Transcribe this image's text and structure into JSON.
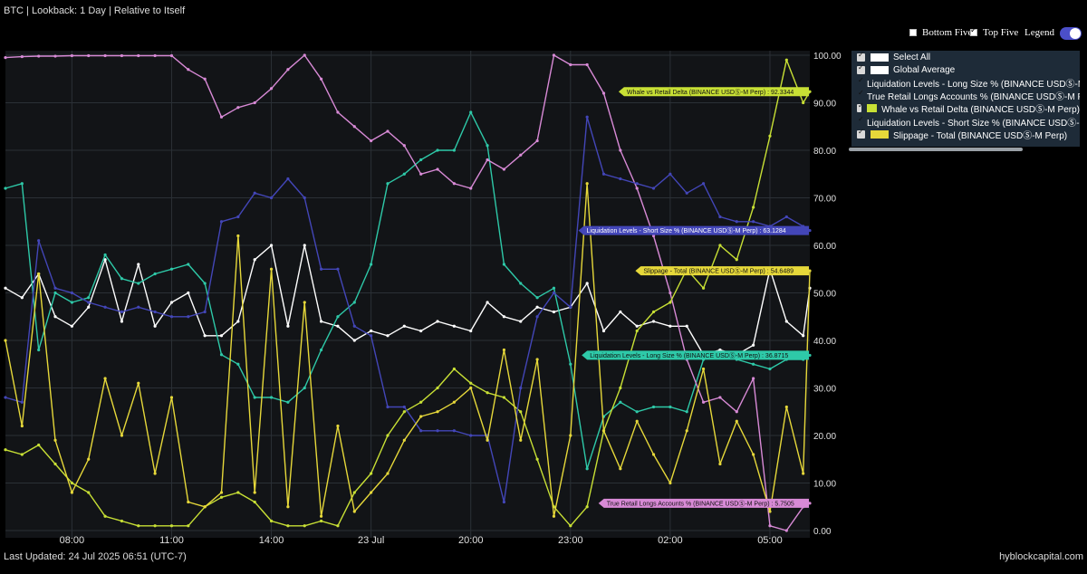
{
  "header": {
    "title": "BTC | Lookback: 1 Day | Relative to Itself"
  },
  "controls": {
    "bottom_five": "Bottom Five",
    "top_five": "Top Five",
    "legend": "Legend"
  },
  "footer": {
    "updated": "Last Updated: 24 Jul 2025 06:51 (UTC-7)",
    "brand": "hyblockcapital.com"
  },
  "legend": {
    "items": [
      {
        "label": "Select All",
        "color": "#ffffff"
      },
      {
        "label": "Global Average",
        "color": "#ffffff"
      },
      {
        "label": "Liquidation Levels - Long Size % (BINANCE USDⓈ-M Perp)",
        "color": "#2ec9a8"
      },
      {
        "label": "True Retail Longs Accounts % (BINANCE USDⓈ-M Perp)",
        "color": "#d88ad6"
      },
      {
        "label": "Whale vs Retail Delta (BINANCE USDⓈ-M Perp)",
        "color": "#c8e035"
      },
      {
        "label": "Liquidation Levels - Short Size % (BINANCE USDⓈ-M Perp)",
        "color": "#4346b8"
      },
      {
        "label": "Slippage - Total (BINANCE USDⓈ-M Perp)",
        "color": "#e6d83a"
      }
    ]
  },
  "chart_data": {
    "type": "line",
    "x_tick_labels": [
      "08:00",
      "11:00",
      "14:00",
      "23 Jul",
      "20:00",
      "23:00",
      "02:00",
      "05:00"
    ],
    "x_tick_hours": [
      2,
      5,
      8,
      11,
      14,
      17,
      20,
      23
    ],
    "x_range_hours": [
      0,
      24.2
    ],
    "y_ticks": [
      "0.00",
      "10.00",
      "20.00",
      "30.00",
      "40.00",
      "50.00",
      "60.00",
      "70.00",
      "80.00",
      "90.00",
      "100.00"
    ],
    "ylim": [
      0,
      100
    ],
    "grid": true,
    "series": [
      {
        "name": "Global Average",
        "color": "#ffffff",
        "points": [
          [
            0,
            51
          ],
          [
            0.5,
            49
          ],
          [
            1,
            54
          ],
          [
            1.5,
            45
          ],
          [
            2,
            43
          ],
          [
            2.5,
            47
          ],
          [
            3,
            57
          ],
          [
            3.5,
            44
          ],
          [
            4,
            56
          ],
          [
            4.5,
            43
          ],
          [
            5,
            48
          ],
          [
            5.5,
            50
          ],
          [
            6,
            41
          ],
          [
            6.5,
            41
          ],
          [
            7,
            44
          ],
          [
            7.5,
            57
          ],
          [
            8,
            60
          ],
          [
            8.5,
            43
          ],
          [
            9,
            60
          ],
          [
            9.5,
            44
          ],
          [
            10,
            43
          ],
          [
            10.5,
            40
          ],
          [
            11,
            42
          ],
          [
            11.5,
            41
          ],
          [
            12,
            43
          ],
          [
            12.5,
            42
          ],
          [
            13,
            44
          ],
          [
            13.5,
            43
          ],
          [
            14,
            42
          ],
          [
            14.5,
            48
          ],
          [
            15,
            45
          ],
          [
            15.5,
            44
          ],
          [
            16,
            47
          ],
          [
            16.5,
            46
          ],
          [
            17,
            47
          ],
          [
            17.5,
            52
          ],
          [
            18,
            42
          ],
          [
            18.5,
            46
          ],
          [
            19,
            43
          ],
          [
            19.5,
            44
          ],
          [
            20,
            43
          ],
          [
            20.5,
            43
          ],
          [
            21,
            37
          ],
          [
            21.5,
            38
          ],
          [
            22,
            37
          ],
          [
            22.5,
            39
          ],
          [
            23,
            55
          ],
          [
            23.5,
            44
          ],
          [
            24,
            41
          ],
          [
            24.2,
            51
          ]
        ],
        "tag": ""
      },
      {
        "name": "Liquidation Levels - Long Size % (BINANCE USDⓈ-M Perp)",
        "color": "#2ec9a8",
        "points": [
          [
            0,
            72
          ],
          [
            0.5,
            73
          ],
          [
            1,
            38
          ],
          [
            1.5,
            50
          ],
          [
            2,
            48
          ],
          [
            2.5,
            49
          ],
          [
            3,
            58
          ],
          [
            3.5,
            53
          ],
          [
            4,
            52
          ],
          [
            4.5,
            54
          ],
          [
            5,
            55
          ],
          [
            5.5,
            56
          ],
          [
            6,
            52
          ],
          [
            6.5,
            37
          ],
          [
            7,
            35
          ],
          [
            7.5,
            28
          ],
          [
            8,
            28
          ],
          [
            8.5,
            27
          ],
          [
            9,
            30
          ],
          [
            9.5,
            38
          ],
          [
            10,
            45
          ],
          [
            10.5,
            48
          ],
          [
            11,
            56
          ],
          [
            11.5,
            73
          ],
          [
            12,
            75
          ],
          [
            12.5,
            78
          ],
          [
            13,
            80
          ],
          [
            13.5,
            80
          ],
          [
            14,
            88
          ],
          [
            14.5,
            81
          ],
          [
            15,
            56
          ],
          [
            15.5,
            52
          ],
          [
            16,
            49
          ],
          [
            16.5,
            51
          ],
          [
            17,
            35
          ],
          [
            17.5,
            13
          ],
          [
            18,
            24
          ],
          [
            18.5,
            27
          ],
          [
            19,
            25
          ],
          [
            19.5,
            26
          ],
          [
            20,
            26
          ],
          [
            20.5,
            25
          ],
          [
            21,
            36
          ],
          [
            21.5,
            37
          ],
          [
            22,
            36
          ],
          [
            22.5,
            35
          ],
          [
            23,
            34
          ],
          [
            23.5,
            36
          ],
          [
            24,
            36
          ],
          [
            24.2,
            36.87
          ]
        ],
        "tag": "Liquidation Levels - Long Size % (BINANCE USDⓈ-M Perp) : 36.8715"
      },
      {
        "name": "True Retail Longs Accounts % (BINANCE USDⓈ-M Perp)",
        "color": "#d88ad6",
        "points": [
          [
            0,
            99.5
          ],
          [
            0.5,
            99.7
          ],
          [
            1,
            99.8
          ],
          [
            1.5,
            99.8
          ],
          [
            2,
            99.9
          ],
          [
            2.5,
            99.9
          ],
          [
            3,
            99.9
          ],
          [
            3.5,
            99.9
          ],
          [
            4,
            99.9
          ],
          [
            4.5,
            99.9
          ],
          [
            5,
            99.9
          ],
          [
            5.5,
            97
          ],
          [
            6,
            95
          ],
          [
            6.5,
            87
          ],
          [
            7,
            89
          ],
          [
            7.5,
            90
          ],
          [
            8,
            93
          ],
          [
            8.5,
            97
          ],
          [
            9,
            100
          ],
          [
            9.5,
            95
          ],
          [
            10,
            88
          ],
          [
            10.5,
            85
          ],
          [
            11,
            82
          ],
          [
            11.5,
            84
          ],
          [
            12,
            81
          ],
          [
            12.5,
            75
          ],
          [
            13,
            76
          ],
          [
            13.5,
            73
          ],
          [
            14,
            72
          ],
          [
            14.5,
            78
          ],
          [
            15,
            76
          ],
          [
            15.5,
            79
          ],
          [
            16,
            82
          ],
          [
            16.5,
            100
          ],
          [
            17,
            98
          ],
          [
            17.5,
            98
          ],
          [
            18,
            92
          ],
          [
            18.5,
            80
          ],
          [
            19,
            72
          ],
          [
            19.5,
            62
          ],
          [
            20,
            50
          ],
          [
            20.5,
            36
          ],
          [
            21,
            27
          ],
          [
            21.5,
            28
          ],
          [
            22,
            25
          ],
          [
            22.5,
            32
          ],
          [
            23,
            1
          ],
          [
            23.5,
            0
          ],
          [
            24,
            5
          ],
          [
            24.2,
            5.75
          ]
        ],
        "tag": "True Retail Longs Accounts % (BINANCE USDⓈ-M Perp) : 5.7505"
      },
      {
        "name": "Whale vs Retail Delta (BINANCE USDⓈ-M Perp)",
        "color": "#c8e035",
        "points": [
          [
            0,
            17
          ],
          [
            0.5,
            16
          ],
          [
            1,
            18
          ],
          [
            1.5,
            14
          ],
          [
            2,
            10
          ],
          [
            2.5,
            8
          ],
          [
            3,
            3
          ],
          [
            3.5,
            2
          ],
          [
            4,
            1
          ],
          [
            4.5,
            1
          ],
          [
            5,
            1
          ],
          [
            5.5,
            1
          ],
          [
            6,
            5
          ],
          [
            6.5,
            7
          ],
          [
            7,
            8
          ],
          [
            7.5,
            6
          ],
          [
            8,
            2
          ],
          [
            8.5,
            1
          ],
          [
            9,
            1
          ],
          [
            9.5,
            2
          ],
          [
            10,
            1
          ],
          [
            10.5,
            8
          ],
          [
            11,
            12
          ],
          [
            11.5,
            20
          ],
          [
            12,
            25
          ],
          [
            12.5,
            27
          ],
          [
            13,
            30
          ],
          [
            13.5,
            34
          ],
          [
            14,
            31
          ],
          [
            14.5,
            29
          ],
          [
            15,
            28
          ],
          [
            15.5,
            25
          ],
          [
            16,
            15
          ],
          [
            16.5,
            5
          ],
          [
            17,
            1
          ],
          [
            17.5,
            5
          ],
          [
            18,
            21
          ],
          [
            18.5,
            30
          ],
          [
            19,
            42
          ],
          [
            19.5,
            46
          ],
          [
            20,
            48
          ],
          [
            20.5,
            55
          ],
          [
            21,
            51
          ],
          [
            21.5,
            60
          ],
          [
            22,
            57
          ],
          [
            22.5,
            68
          ],
          [
            23,
            83
          ],
          [
            23.5,
            99
          ],
          [
            24,
            90
          ],
          [
            24.2,
            92.33
          ]
        ],
        "tag": "Whale vs Retail Delta (BINANCE USDⓈ-M Perp) : 92.3344"
      },
      {
        "name": "Liquidation Levels - Short Size % (BINANCE USDⓈ-M Perp)",
        "color": "#4346b8",
        "points": [
          [
            0,
            28
          ],
          [
            0.5,
            27
          ],
          [
            1,
            61
          ],
          [
            1.5,
            51
          ],
          [
            2,
            50
          ],
          [
            2.5,
            48
          ],
          [
            3,
            47
          ],
          [
            3.5,
            46
          ],
          [
            4,
            47
          ],
          [
            4.5,
            46
          ],
          [
            5,
            45
          ],
          [
            5.5,
            45
          ],
          [
            6,
            46
          ],
          [
            6.5,
            65
          ],
          [
            7,
            66
          ],
          [
            7.5,
            71
          ],
          [
            8,
            70
          ],
          [
            8.5,
            74
          ],
          [
            9,
            70
          ],
          [
            9.5,
            55
          ],
          [
            10,
            55
          ],
          [
            10.5,
            43
          ],
          [
            11,
            41
          ],
          [
            11.5,
            26
          ],
          [
            12,
            26
          ],
          [
            12.5,
            21
          ],
          [
            13,
            21
          ],
          [
            13.5,
            21
          ],
          [
            14,
            20
          ],
          [
            14.5,
            20
          ],
          [
            15,
            6
          ],
          [
            15.5,
            30
          ],
          [
            16,
            45
          ],
          [
            16.5,
            50
          ],
          [
            17,
            47
          ],
          [
            17.5,
            87
          ],
          [
            18,
            75
          ],
          [
            18.5,
            74
          ],
          [
            19,
            73
          ],
          [
            19.5,
            72
          ],
          [
            20,
            75
          ],
          [
            20.5,
            71
          ],
          [
            21,
            73
          ],
          [
            21.5,
            66
          ],
          [
            22,
            65
          ],
          [
            22.5,
            65
          ],
          [
            23,
            64
          ],
          [
            23.5,
            66
          ],
          [
            24,
            64
          ],
          [
            24.2,
            63.13
          ]
        ],
        "tag": "Liquidation Levels - Short Size % (BINANCE USDⓈ-M Perp) : 63.1284"
      },
      {
        "name": "Slippage - Total (BINANCE USDⓈ-M Perp)",
        "color": "#e6d83a",
        "points": [
          [
            0,
            40
          ],
          [
            0.5,
            22
          ],
          [
            1,
            54
          ],
          [
            1.5,
            19
          ],
          [
            2,
            8
          ],
          [
            2.5,
            15
          ],
          [
            3,
            32
          ],
          [
            3.5,
            20
          ],
          [
            4,
            31
          ],
          [
            4.5,
            12
          ],
          [
            5,
            28
          ],
          [
            5.5,
            6
          ],
          [
            6,
            5
          ],
          [
            6.5,
            8
          ],
          [
            7,
            62
          ],
          [
            7.5,
            8
          ],
          [
            8,
            55
          ],
          [
            8.5,
            5
          ],
          [
            9,
            48
          ],
          [
            9.5,
            3
          ],
          [
            10,
            22
          ],
          [
            10.5,
            4
          ],
          [
            11,
            8
          ],
          [
            11.5,
            12
          ],
          [
            12,
            19
          ],
          [
            12.5,
            24
          ],
          [
            13,
            25
          ],
          [
            13.5,
            27
          ],
          [
            14,
            30
          ],
          [
            14.5,
            19
          ],
          [
            15,
            38
          ],
          [
            15.5,
            19
          ],
          [
            16,
            36
          ],
          [
            16.5,
            3
          ],
          [
            17,
            20
          ],
          [
            17.5,
            73
          ],
          [
            18,
            21
          ],
          [
            18.5,
            13
          ],
          [
            19,
            23
          ],
          [
            19.5,
            16
          ],
          [
            20,
            10
          ],
          [
            20.5,
            21
          ],
          [
            21,
            34
          ],
          [
            21.5,
            14
          ],
          [
            22,
            23
          ],
          [
            22.5,
            16
          ],
          [
            23,
            4
          ],
          [
            23.5,
            26
          ],
          [
            24,
            12
          ],
          [
            24.2,
            54.65
          ]
        ],
        "tag": "Slippage - Total (BINANCE USDⓈ-M Perp) : 54.6489"
      }
    ]
  }
}
